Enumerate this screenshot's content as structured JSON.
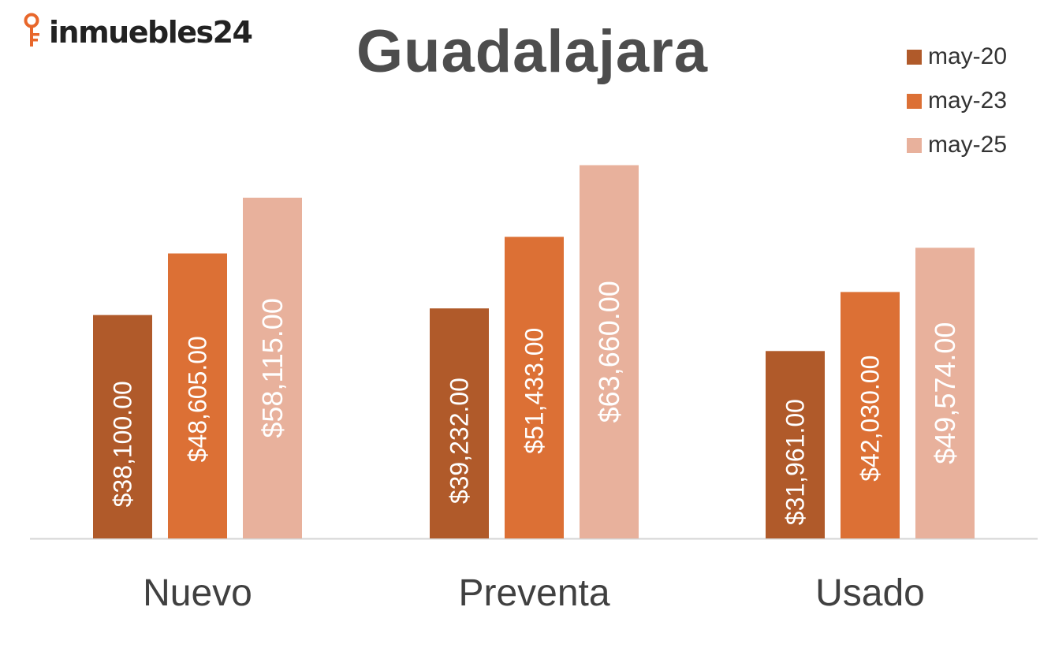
{
  "logo": {
    "text": "inmuebles24",
    "icon": "key-icon"
  },
  "chart_data": {
    "type": "bar",
    "title": "Guadalajara",
    "categories": [
      "Nuevo",
      "Preventa",
      "Usado"
    ],
    "series": [
      {
        "name": "may-20",
        "color": "#b05a2a",
        "values": [
          38100,
          39232,
          31961
        ]
      },
      {
        "name": "may-23",
        "color": "#dc7035",
        "values": [
          48605,
          51433,
          42030
        ]
      },
      {
        "name": "may-25",
        "color": "#e8b19c",
        "values": [
          58115,
          63660,
          49574
        ]
      }
    ],
    "data_labels": [
      [
        "$38,100.00",
        "$39,232.00",
        "$31,961.00"
      ],
      [
        "$48,605.00",
        "$51,433.00",
        "$42,030.00"
      ],
      [
        "$58,115.00",
        "$63,660.00",
        "$49,574.00"
      ]
    ],
    "ylim": [
      0,
      64000
    ],
    "xlabel": "",
    "ylabel": "",
    "legend_position": "top-right",
    "grid": false
  }
}
